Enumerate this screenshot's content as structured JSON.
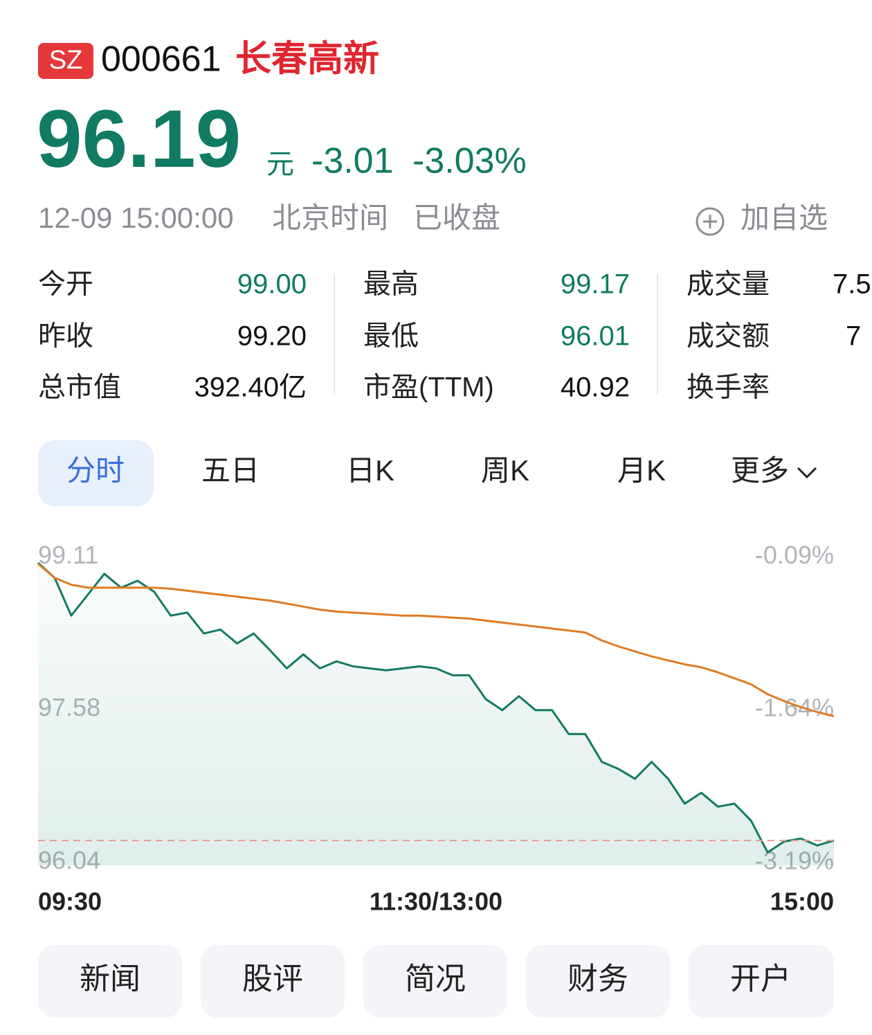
{
  "header": {
    "exchange": "SZ",
    "code": "000661",
    "name": "长春高新",
    "price": "96.19",
    "unit": "元",
    "change": "-3.01",
    "change_pct": "-3.03%",
    "datetime": "12-09 15:00:00",
    "timezone": "北京时间",
    "status": "已收盘",
    "watch_button": "加自选"
  },
  "stats": [
    [
      {
        "label": "今开",
        "value": "99.00"
      },
      {
        "label": "最高",
        "value": "99.17"
      },
      {
        "label": "成交量",
        "value": "7.5"
      }
    ],
    [
      {
        "label": "昨收",
        "value": "99.20"
      },
      {
        "label": "最低",
        "value": "96.01"
      },
      {
        "label": "成交额",
        "value": "7"
      }
    ],
    [
      {
        "label": "总市值",
        "value": "392.40亿"
      },
      {
        "label": "市盈(TTM)",
        "value": "40.92"
      },
      {
        "label": "换手率",
        "value": null
      }
    ]
  ],
  "tabs": [
    "分时",
    "五日",
    "日K",
    "周K",
    "月K",
    "更多"
  ],
  "chart_data": {
    "type": "line",
    "categories": [
      "09:30",
      null,
      null,
      null,
      null,
      null,
      null,
      null,
      null,
      null,
      null,
      null,
      null,
      null,
      null,
      null,
      null,
      null,
      null,
      null,
      null,
      null,
      null,
      null,
      "11:30/13:00",
      null,
      null,
      null,
      null,
      null,
      null,
      null,
      null,
      null,
      null,
      null,
      null,
      null,
      null,
      null,
      null,
      null,
      null,
      null,
      null,
      null,
      null,
      null,
      "15:00"
    ],
    "series": [
      {
        "color": "#137a63",
        "values": [
          98.98,
          98.83,
          98.45,
          98.66,
          98.87,
          98.73,
          98.8,
          98.69,
          98.45,
          98.48,
          98.27,
          98.31,
          98.17,
          98.27,
          98.1,
          97.92,
          98.06,
          97.92,
          97.99,
          97.94,
          97.92,
          97.9,
          97.92,
          97.94,
          97.92,
          97.85,
          97.85,
          97.61,
          97.5,
          97.64,
          97.5,
          97.5,
          97.26,
          97.26,
          96.98,
          96.91,
          96.81,
          96.98,
          96.81,
          96.56,
          96.67,
          96.53,
          96.56,
          96.39,
          96.07,
          96.18,
          96.21,
          96.14,
          96.19
        ]
      },
      {
        "color": "#e07b24",
        "values": [
          98.97,
          98.83,
          98.76,
          98.73,
          98.73,
          98.73,
          98.73,
          98.73,
          98.72,
          98.7,
          98.68,
          98.66,
          98.64,
          98.62,
          98.6,
          98.57,
          98.54,
          98.51,
          98.49,
          98.48,
          98.47,
          98.46,
          98.45,
          98.45,
          98.44,
          98.43,
          98.42,
          98.4,
          98.38,
          98.36,
          98.34,
          98.32,
          98.3,
          98.28,
          98.2,
          98.14,
          98.09,
          98.04,
          98.0,
          97.96,
          97.93,
          97.88,
          97.82,
          97.76,
          97.66,
          97.59,
          97.53,
          97.48,
          97.44
        ]
      }
    ],
    "ylim": [
      95.94,
      99.14
    ],
    "yticks": [
      99.11,
      97.58,
      96.04
    ],
    "y2lim": [
      -3.29,
      -0.06
    ],
    "y2ticks": [
      {
        "value": -0.09,
        "label": "-0.09%"
      },
      {
        "value": -1.64,
        "label": "-1.64%"
      },
      {
        "value": -3.19,
        "label": "-3.19%"
      }
    ],
    "grid": false
  },
  "buttons": [
    "新闻",
    "股评",
    "简况",
    "财务",
    "开户"
  ]
}
